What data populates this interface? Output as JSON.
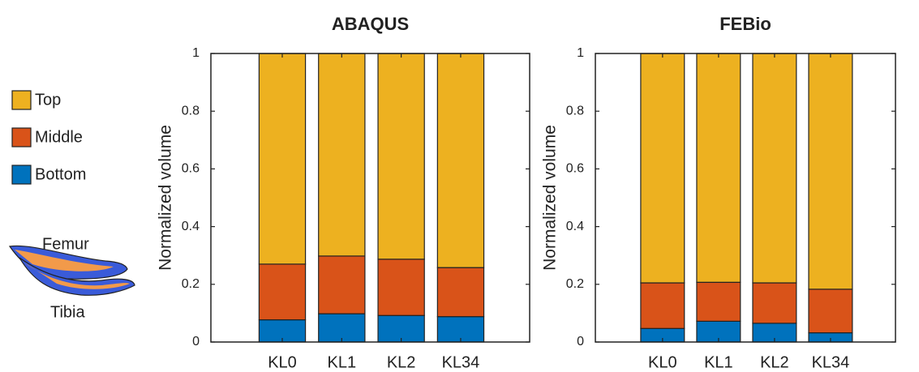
{
  "chart_data": [
    {
      "type": "stacked_bar",
      "title": "ABAQUS",
      "ylabel": "Normalized volume",
      "categories": [
        "KL0",
        "KL1",
        "KL2",
        "KL34"
      ],
      "series": [
        {
          "name": "Bottom",
          "color": "#0072BD",
          "values": [
            0.077,
            0.098,
            0.092,
            0.088
          ]
        },
        {
          "name": "Middle",
          "color": "#D95319",
          "values": [
            0.193,
            0.2,
            0.195,
            0.17
          ]
        },
        {
          "name": "Top",
          "color": "#EDB120",
          "values": [
            0.73,
            0.702,
            0.713,
            0.742
          ]
        }
      ],
      "ylim": [
        0,
        1
      ],
      "yticks": [
        0,
        0.2,
        0.4,
        0.6,
        0.8,
        1
      ]
    },
    {
      "type": "stacked_bar",
      "title": "FEBio",
      "ylabel": "Normalized volume",
      "categories": [
        "KL0",
        "KL1",
        "KL2",
        "KL34"
      ],
      "series": [
        {
          "color": "#0072BD",
          "values": [
            0.047,
            0.072,
            0.065,
            0.032
          ]
        },
        {
          "color": "#D95319",
          "values": [
            0.158,
            0.135,
            0.14,
            0.151
          ]
        },
        {
          "color": "#EDB120",
          "values": [
            0.795,
            0.793,
            0.795,
            0.817
          ]
        }
      ],
      "ylim": [
        0,
        1
      ],
      "yticks": [
        0,
        0.2,
        0.4,
        0.6,
        0.8,
        1
      ]
    }
  ],
  "illustration": {
    "upper_label": "Femur",
    "lower_label": "Tibia"
  }
}
